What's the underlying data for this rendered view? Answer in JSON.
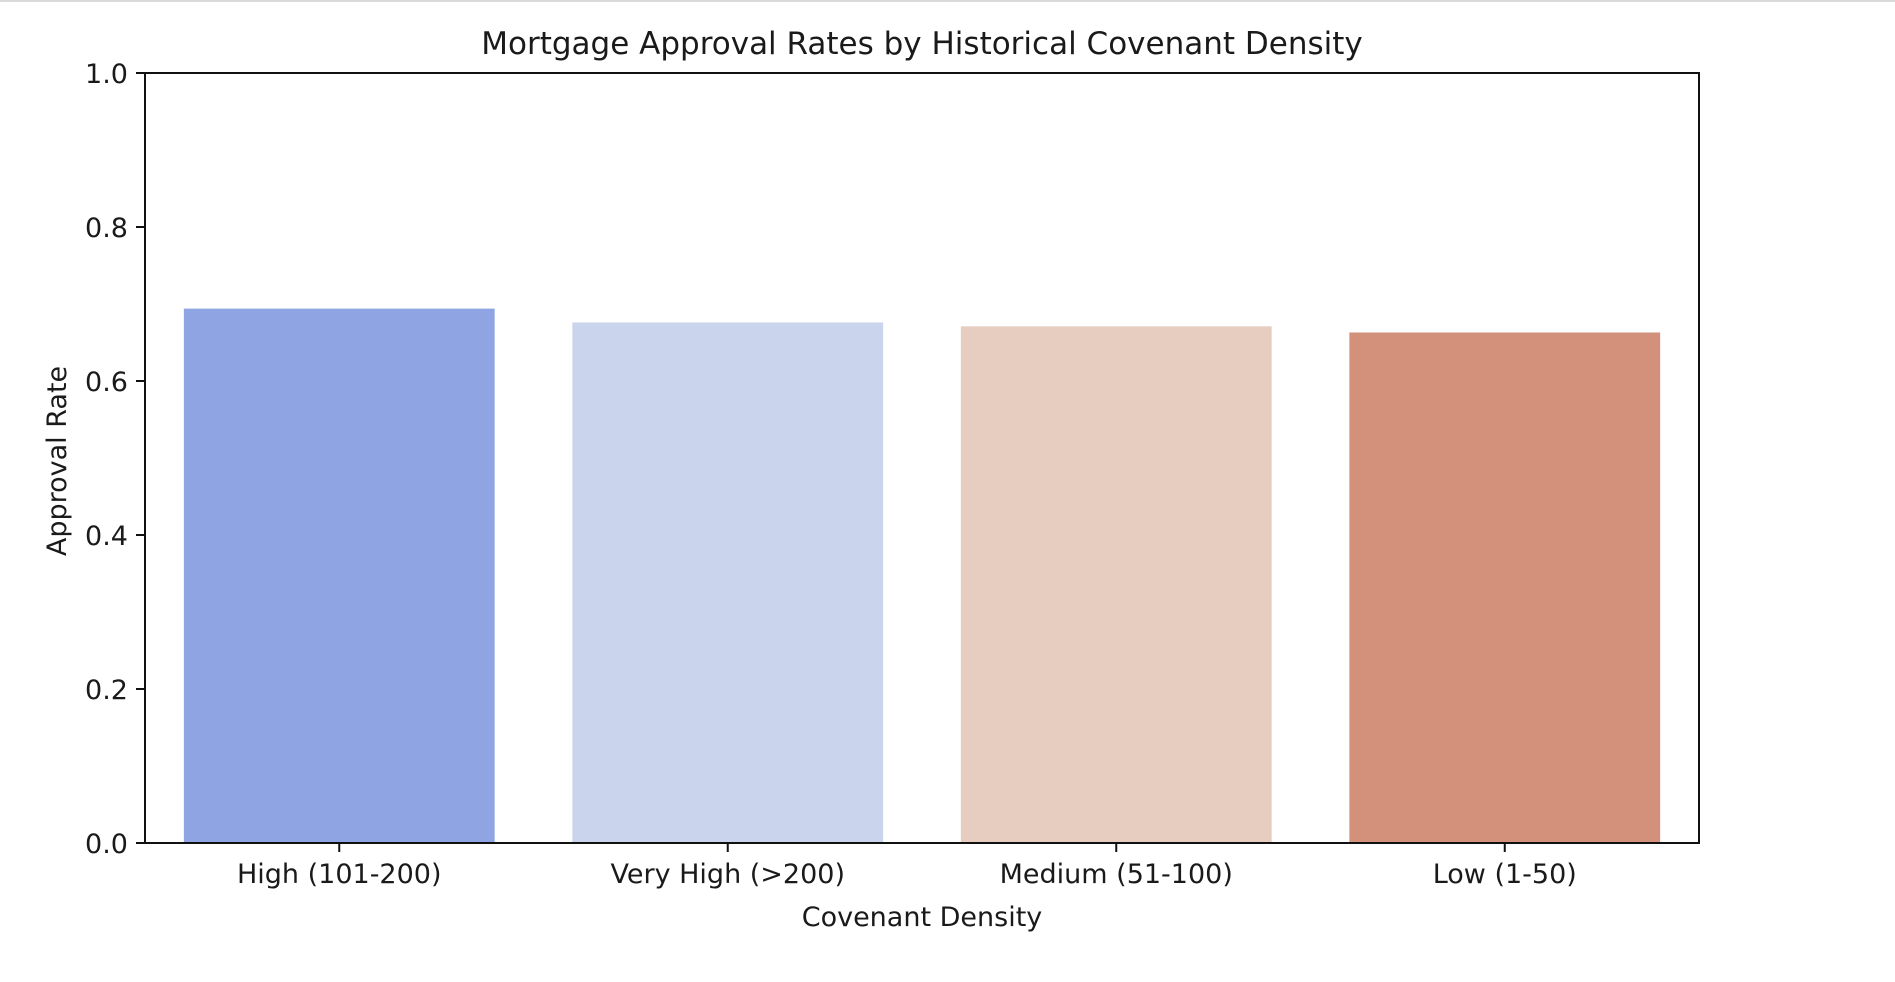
{
  "chart_data": {
    "type": "bar",
    "title": "Mortgage Approval Rates by Historical Covenant Density",
    "xlabel": "Covenant Density",
    "ylabel": "Approval Rate",
    "categories": [
      "High (101-200)",
      "Very High (>200)",
      "Medium (51-100)",
      "Low (1-50)"
    ],
    "values": [
      0.694,
      0.676,
      0.671,
      0.663
    ],
    "colors": [
      "#8fa5e3",
      "#cbd4ed",
      "#e7cdc0",
      "#d3917b"
    ],
    "ylim": [
      0,
      1.0
    ],
    "yticks": [
      "0.0",
      "0.2",
      "0.4",
      "0.6",
      "0.8",
      "1.0"
    ],
    "grid": false,
    "legend": "none"
  }
}
